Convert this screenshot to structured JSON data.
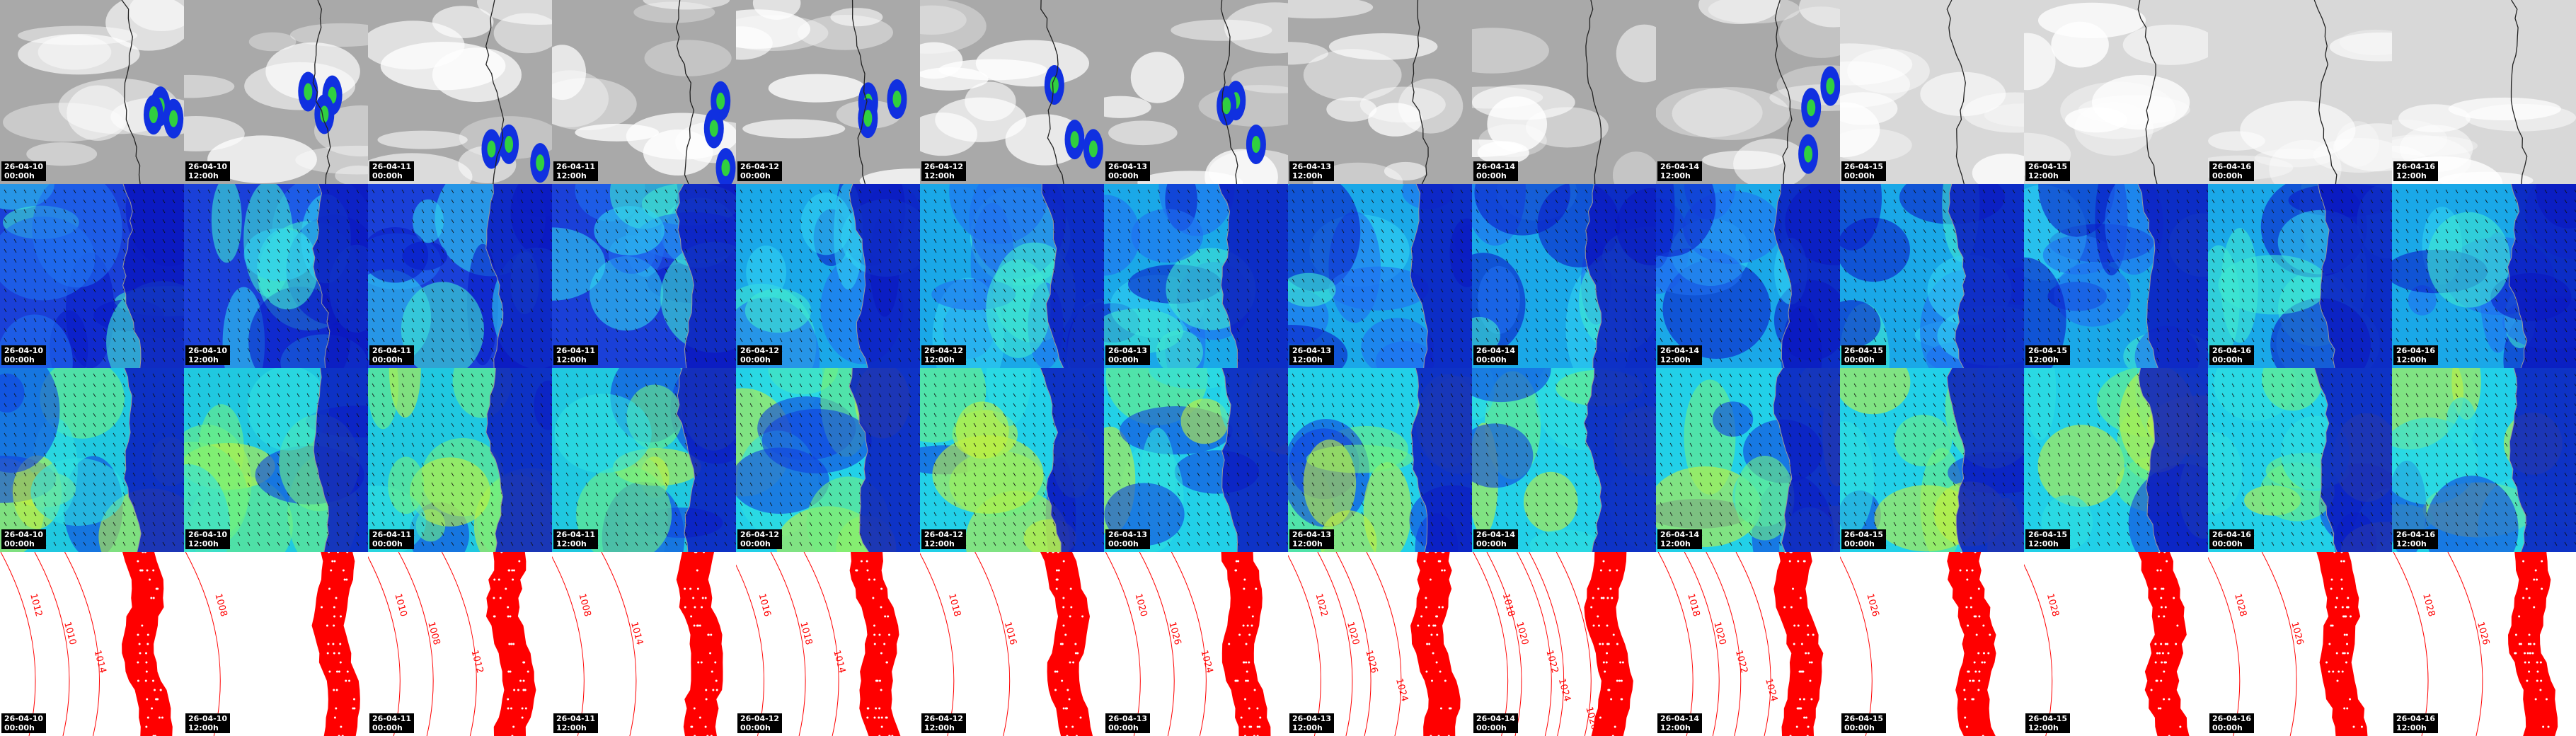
{
  "columns": [
    {
      "date": "26-04-10",
      "time": "00:00h",
      "isobars": [
        "1012",
        "1010",
        "1014"
      ]
    },
    {
      "date": "26-04-10",
      "time": "12:00h",
      "isobars": [
        "1008"
      ]
    },
    {
      "date": "26-04-11",
      "time": "00:00h",
      "isobars": [
        "1010",
        "1008",
        "1012"
      ]
    },
    {
      "date": "26-04-11",
      "time": "12:00h",
      "isobars": [
        "1008",
        "1014"
      ]
    },
    {
      "date": "26-04-12",
      "time": "00:00h",
      "isobars": [
        "1016",
        "1018",
        "1014"
      ]
    },
    {
      "date": "26-04-12",
      "time": "12:00h",
      "isobars": [
        "1018",
        "1016"
      ]
    },
    {
      "date": "26-04-13",
      "time": "00:00h",
      "isobars": [
        "1020",
        "1026",
        "1024"
      ]
    },
    {
      "date": "26-04-13",
      "time": "12:00h",
      "isobars": [
        "1022",
        "1020",
        "1026",
        "1024"
      ]
    },
    {
      "date": "26-04-14",
      "time": "00:00h",
      "isobars": [
        "1018",
        "1020",
        "1022",
        "1024",
        "1026"
      ]
    },
    {
      "date": "26-04-14",
      "time": "12:00h",
      "isobars": [
        "1018",
        "1020",
        "1022",
        "1024"
      ]
    },
    {
      "date": "26-04-15",
      "time": "00:00h",
      "isobars": [
        "1026"
      ]
    },
    {
      "date": "26-04-15",
      "time": "12:00h",
      "isobars": [
        "1028"
      ]
    },
    {
      "date": "26-04-16",
      "time": "00:00h",
      "isobars": [
        "1028",
        "1026"
      ]
    },
    {
      "date": "26-04-16",
      "time": "12:00h",
      "isobars": [
        "1028",
        "1026"
      ]
    }
  ]
}
